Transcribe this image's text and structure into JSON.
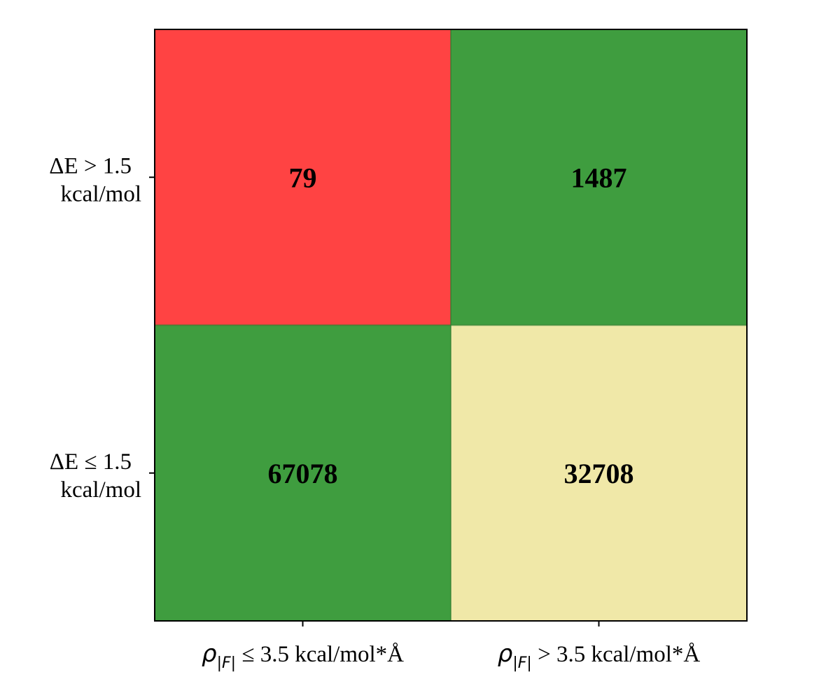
{
  "chart_data": {
    "type": "heatmap",
    "title": "",
    "xlabel": "",
    "ylabel": "",
    "x_tick_labels": [
      {
        "symbol": "ρ",
        "subscript": "|F|",
        "text": " ≤ 3.5 kcal/mol*Å"
      },
      {
        "symbol": "ρ",
        "subscript": "|F|",
        "text": " > 3.5 kcal/mol*Å"
      }
    ],
    "y_tick_labels": [
      [
        "ΔE > 1.5",
        "kcal/mol"
      ],
      [
        "ΔE ≤ 1.5",
        "kcal/mol"
      ]
    ],
    "values": [
      [
        79,
        1487
      ],
      [
        67078,
        32708
      ]
    ],
    "cell_colors": [
      [
        "#ff4343",
        "#3f9d3f"
      ],
      [
        "#3f9d3f",
        "#f0e8a8"
      ]
    ],
    "grid": false,
    "legend": "none"
  }
}
